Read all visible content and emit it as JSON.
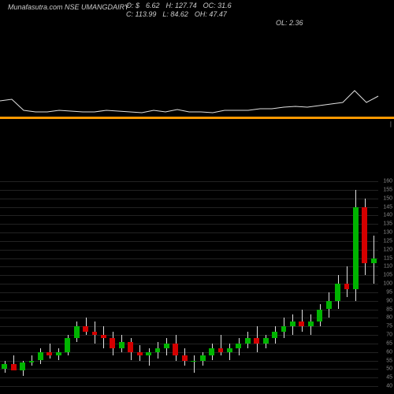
{
  "header": {
    "left_text": "Munafasutra.com NSE UMANGDAIRY",
    "items": [
      {
        "l": "O:",
        "v": "$"
      },
      {
        "l": "",
        "v": "6.62"
      },
      {
        "l": "H:",
        "v": "127.74"
      },
      {
        "l": "OC:",
        "v": "31.6"
      },
      {
        "l": "C:",
        "v": "113.99"
      },
      {
        "l": "L:",
        "v": "84.62"
      },
      {
        "l": "OH:",
        "v": "47.47"
      },
      {
        "l": "",
        "v": ""
      },
      {
        "l": "OL:",
        "v": "2.36"
      }
    ]
  },
  "colors": {
    "bg": "#000000",
    "line": "#e0e0e0",
    "separator": "#ff9900",
    "grid": "#222222",
    "up": "#00b400",
    "down": "#d40000",
    "wick": "#e0e0e0",
    "label": "#888888"
  },
  "line_chart": {
    "points": [
      [
        0,
        68
      ],
      [
        15,
        66
      ],
      [
        30,
        80
      ],
      [
        45,
        82
      ],
      [
        60,
        82
      ],
      [
        75,
        80
      ],
      [
        90,
        81
      ],
      [
        105,
        82
      ],
      [
        120,
        82
      ],
      [
        135,
        80
      ],
      [
        150,
        81
      ],
      [
        165,
        82
      ],
      [
        180,
        83
      ],
      [
        195,
        80
      ],
      [
        210,
        82
      ],
      [
        225,
        79
      ],
      [
        240,
        82
      ],
      [
        255,
        82
      ],
      [
        270,
        83
      ],
      [
        285,
        80
      ],
      [
        300,
        80
      ],
      [
        315,
        80
      ],
      [
        330,
        78
      ],
      [
        345,
        78
      ],
      [
        360,
        76
      ],
      [
        375,
        75
      ],
      [
        390,
        76
      ],
      [
        405,
        74
      ],
      [
        420,
        72
      ],
      [
        435,
        70
      ],
      [
        450,
        55
      ],
      [
        465,
        70
      ],
      [
        480,
        62
      ]
    ]
  },
  "price_axis": {
    "min": 40,
    "max": 160,
    "labels": [
      40,
      45,
      50,
      55,
      60,
      65,
      70,
      75,
      80,
      85,
      90,
      95,
      100,
      105,
      110,
      115,
      120,
      125,
      130,
      135,
      140,
      145,
      150,
      155,
      160
    ]
  },
  "candles": [
    {
      "o": 50,
      "h": 55,
      "l": 48,
      "c": 53
    },
    {
      "o": 53,
      "h": 58,
      "l": 50,
      "c": 49
    },
    {
      "o": 49,
      "h": 55,
      "l": 46,
      "c": 54
    },
    {
      "o": 54,
      "h": 58,
      "l": 52,
      "c": 55
    },
    {
      "o": 55,
      "h": 62,
      "l": 53,
      "c": 60
    },
    {
      "o": 60,
      "h": 65,
      "l": 56,
      "c": 58
    },
    {
      "o": 58,
      "h": 62,
      "l": 55,
      "c": 60
    },
    {
      "o": 60,
      "h": 70,
      "l": 58,
      "c": 68
    },
    {
      "o": 68,
      "h": 78,
      "l": 66,
      "c": 75
    },
    {
      "o": 75,
      "h": 80,
      "l": 70,
      "c": 72
    },
    {
      "o": 72,
      "h": 78,
      "l": 65,
      "c": 70
    },
    {
      "o": 70,
      "h": 75,
      "l": 62,
      "c": 68
    },
    {
      "o": 68,
      "h": 72,
      "l": 58,
      "c": 62
    },
    {
      "o": 62,
      "h": 70,
      "l": 60,
      "c": 66
    },
    {
      "o": 66,
      "h": 68,
      "l": 55,
      "c": 60
    },
    {
      "o": 60,
      "h": 64,
      "l": 55,
      "c": 58
    },
    {
      "o": 58,
      "h": 62,
      "l": 52,
      "c": 60
    },
    {
      "o": 60,
      "h": 66,
      "l": 56,
      "c": 62
    },
    {
      "o": 62,
      "h": 68,
      "l": 58,
      "c": 65
    },
    {
      "o": 65,
      "h": 70,
      "l": 55,
      "c": 58
    },
    {
      "o": 58,
      "h": 62,
      "l": 52,
      "c": 55
    },
    {
      "o": 55,
      "h": 58,
      "l": 48,
      "c": 55
    },
    {
      "o": 55,
      "h": 60,
      "l": 52,
      "c": 58
    },
    {
      "o": 58,
      "h": 65,
      "l": 55,
      "c": 62
    },
    {
      "o": 62,
      "h": 70,
      "l": 58,
      "c": 60
    },
    {
      "o": 60,
      "h": 65,
      "l": 55,
      "c": 62
    },
    {
      "o": 62,
      "h": 68,
      "l": 58,
      "c": 65
    },
    {
      "o": 65,
      "h": 72,
      "l": 62,
      "c": 68
    },
    {
      "o": 68,
      "h": 75,
      "l": 60,
      "c": 65
    },
    {
      "o": 65,
      "h": 70,
      "l": 62,
      "c": 68
    },
    {
      "o": 68,
      "h": 75,
      "l": 65,
      "c": 72
    },
    {
      "o": 72,
      "h": 80,
      "l": 68,
      "c": 75
    },
    {
      "o": 75,
      "h": 82,
      "l": 70,
      "c": 78
    },
    {
      "o": 78,
      "h": 85,
      "l": 72,
      "c": 75
    },
    {
      "o": 75,
      "h": 82,
      "l": 70,
      "c": 78
    },
    {
      "o": 78,
      "h": 88,
      "l": 75,
      "c": 85
    },
    {
      "o": 85,
      "h": 95,
      "l": 80,
      "c": 90
    },
    {
      "o": 90,
      "h": 105,
      "l": 85,
      "c": 100
    },
    {
      "o": 100,
      "h": 110,
      "l": 92,
      "c": 97
    },
    {
      "o": 97,
      "h": 155,
      "l": 90,
      "c": 145
    },
    {
      "o": 145,
      "h": 150,
      "l": 105,
      "c": 112
    },
    {
      "o": 112,
      "h": 128,
      "l": 100,
      "c": 115
    }
  ]
}
